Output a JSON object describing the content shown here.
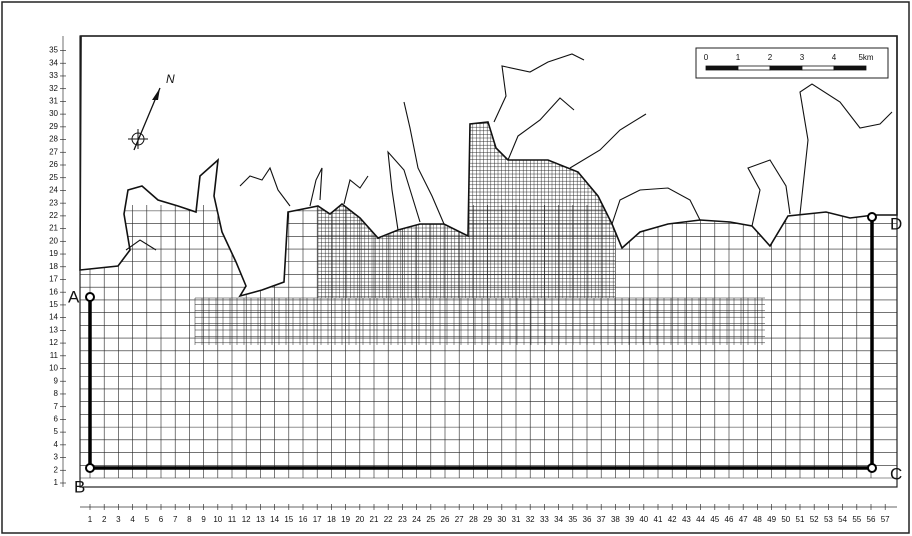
{
  "y_axis_labels": [
    1,
    2,
    3,
    4,
    5,
    6,
    7,
    8,
    9,
    10,
    11,
    12,
    13,
    14,
    15,
    16,
    17,
    18,
    19,
    20,
    21,
    22,
    23,
    24,
    25,
    26,
    27,
    28,
    29,
    30,
    31,
    32,
    33,
    34,
    35
  ],
  "x_axis_labels": [
    1,
    2,
    3,
    4,
    5,
    6,
    7,
    8,
    9,
    10,
    11,
    12,
    13,
    14,
    15,
    16,
    17,
    18,
    19,
    20,
    21,
    22,
    23,
    24,
    25,
    26,
    27,
    28,
    29,
    30,
    31,
    32,
    33,
    34,
    35,
    36,
    37,
    38,
    39,
    40,
    41,
    42,
    43,
    44,
    45,
    46,
    47,
    48,
    49,
    50,
    51,
    52,
    53,
    54,
    55,
    56,
    57
  ],
  "scale_bar": {
    "labels": [
      "0",
      "1",
      "2",
      "3",
      "4",
      "5km"
    ]
  },
  "north_label": "N",
  "boundary_points": [
    "A",
    "B",
    "C",
    "D"
  ]
}
